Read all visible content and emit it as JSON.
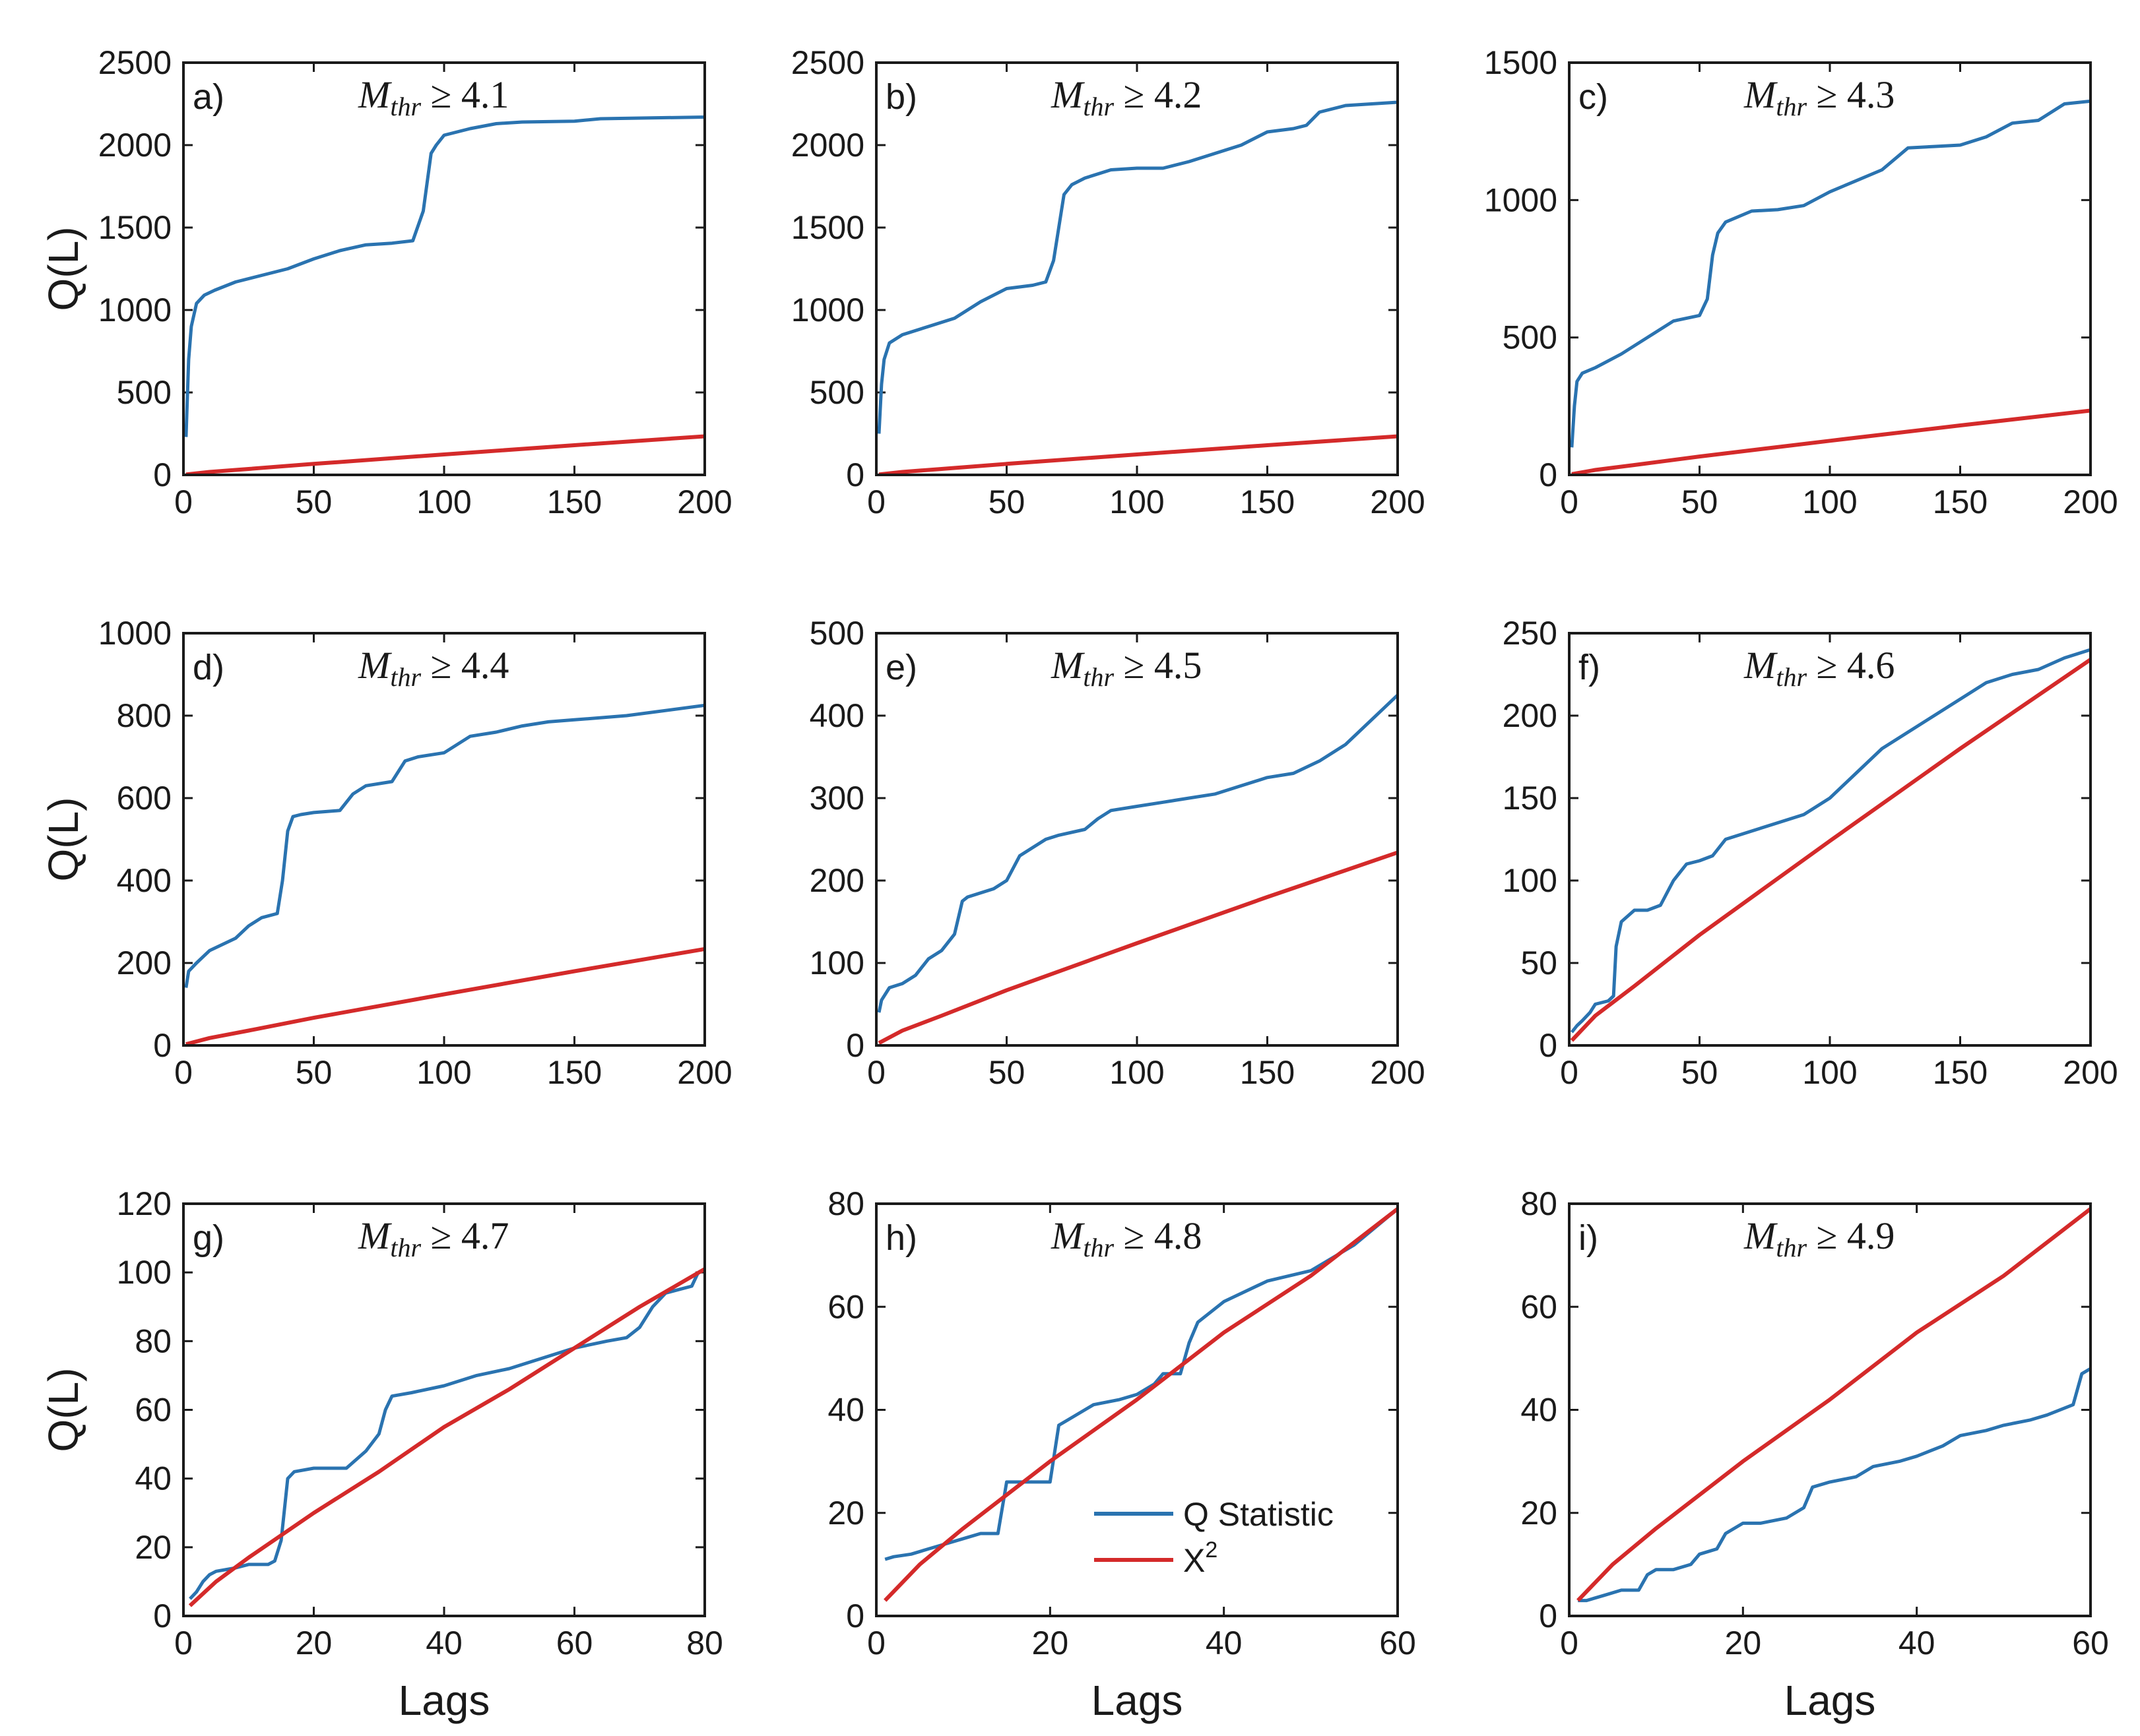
{
  "colors": {
    "q": "#2a73b0",
    "chi": "#d42a2a",
    "axis": "#1a1a1a"
  },
  "legend": {
    "q_label": "Q Statistic",
    "chi_base": "X",
    "chi_sup": "2",
    "panel": "h"
  },
  "chart_data": [
    {
      "type": "line",
      "panel": "a)",
      "mthr": "4.1",
      "prefix": "M",
      "sub": "thr",
      "rel": "≥",
      "xlim": [
        0,
        200
      ],
      "ylim": [
        0,
        2500
      ],
      "xticks": [
        0,
        50,
        100,
        150,
        200
      ],
      "yticks": [
        0,
        500,
        1000,
        1500,
        2000,
        2500
      ],
      "ylabel": "Q(L)",
      "xlabel": "",
      "series": [
        {
          "name": "Q Statistic",
          "x": [
            1,
            2,
            3,
            5,
            8,
            12,
            20,
            30,
            40,
            50,
            60,
            70,
            80,
            88,
            92,
            95,
            97,
            100,
            110,
            120,
            130,
            150,
            160,
            200
          ],
          "y": [
            230,
            700,
            900,
            1040,
            1090,
            1120,
            1170,
            1210,
            1250,
            1310,
            1360,
            1395,
            1405,
            1420,
            1600,
            1950,
            2000,
            2060,
            2100,
            2130,
            2140,
            2145,
            2160,
            2170
          ]
        },
        {
          "name": "X2",
          "x": [
            1,
            10,
            25,
            50,
            100,
            150,
            200
          ],
          "y": [
            3,
            18,
            36,
            67,
            124,
            180,
            234
          ]
        }
      ]
    },
    {
      "type": "line",
      "panel": "b)",
      "mthr": "4.2",
      "prefix": "M",
      "sub": "thr",
      "rel": "≥",
      "xlim": [
        0,
        200
      ],
      "ylim": [
        0,
        2500
      ],
      "xticks": [
        0,
        50,
        100,
        150,
        200
      ],
      "yticks": [
        0,
        500,
        1000,
        1500,
        2000,
        2500
      ],
      "ylabel": "",
      "xlabel": "",
      "series": [
        {
          "name": "Q Statistic",
          "x": [
            1,
            2,
            3,
            5,
            10,
            20,
            30,
            40,
            50,
            60,
            65,
            68,
            70,
            72,
            75,
            80,
            90,
            100,
            110,
            120,
            130,
            140,
            150,
            160,
            165,
            170,
            180,
            200
          ],
          "y": [
            250,
            550,
            700,
            800,
            850,
            900,
            950,
            1050,
            1130,
            1150,
            1170,
            1300,
            1500,
            1700,
            1760,
            1800,
            1850,
            1860,
            1860,
            1900,
            1950,
            2000,
            2080,
            2100,
            2120,
            2200,
            2240,
            2260
          ]
        },
        {
          "name": "X2",
          "x": [
            1,
            10,
            25,
            50,
            100,
            150,
            200
          ],
          "y": [
            3,
            18,
            36,
            67,
            124,
            180,
            234
          ]
        }
      ]
    },
    {
      "type": "line",
      "panel": "c)",
      "mthr": "4.3",
      "prefix": "M",
      "sub": "thr",
      "rel": "≥",
      "xlim": [
        0,
        200
      ],
      "ylim": [
        0,
        1500
      ],
      "xticks": [
        0,
        50,
        100,
        150,
        200
      ],
      "yticks": [
        0,
        500,
        1000,
        1500
      ],
      "ylabel": "",
      "xlabel": "",
      "series": [
        {
          "name": "Q Statistic",
          "x": [
            1,
            2,
            3,
            5,
            10,
            20,
            30,
            40,
            50,
            53,
            55,
            57,
            60,
            70,
            80,
            90,
            100,
            110,
            120,
            130,
            140,
            150,
            160,
            170,
            180,
            190,
            200
          ],
          "y": [
            100,
            250,
            340,
            370,
            390,
            440,
            500,
            560,
            580,
            640,
            800,
            880,
            920,
            960,
            965,
            980,
            1030,
            1070,
            1110,
            1190,
            1195,
            1200,
            1230,
            1280,
            1290,
            1350,
            1360
          ]
        },
        {
          "name": "X2",
          "x": [
            1,
            10,
            25,
            50,
            100,
            150,
            200
          ],
          "y": [
            3,
            18,
            36,
            67,
            124,
            180,
            234
          ]
        }
      ]
    },
    {
      "type": "line",
      "panel": "d)",
      "mthr": "4.4",
      "prefix": "M",
      "sub": "thr",
      "rel": "≥",
      "xlim": [
        0,
        200
      ],
      "ylim": [
        0,
        1000
      ],
      "xticks": [
        0,
        50,
        100,
        150,
        200
      ],
      "yticks": [
        0,
        200,
        400,
        600,
        800,
        1000
      ],
      "ylabel": "Q(L)",
      "xlabel": "",
      "series": [
        {
          "name": "Q Statistic",
          "x": [
            1,
            2,
            5,
            10,
            20,
            25,
            30,
            36,
            38,
            40,
            42,
            45,
            50,
            60,
            65,
            70,
            80,
            85,
            90,
            100,
            110,
            120,
            130,
            140,
            150,
            170,
            200
          ],
          "y": [
            140,
            180,
            200,
            230,
            260,
            290,
            310,
            320,
            400,
            520,
            555,
            560,
            565,
            570,
            610,
            630,
            640,
            690,
            700,
            710,
            750,
            760,
            775,
            785,
            790,
            800,
            825
          ]
        },
        {
          "name": "X2",
          "x": [
            1,
            10,
            25,
            50,
            100,
            150,
            200
          ],
          "y": [
            3,
            18,
            36,
            67,
            124,
            180,
            234
          ]
        }
      ]
    },
    {
      "type": "line",
      "panel": "e)",
      "mthr": "4.5",
      "prefix": "M",
      "sub": "thr",
      "rel": "≥",
      "xlim": [
        0,
        200
      ],
      "ylim": [
        0,
        500
      ],
      "xticks": [
        0,
        50,
        100,
        150,
        200
      ],
      "yticks": [
        0,
        100,
        200,
        300,
        400,
        500
      ],
      "ylabel": "",
      "xlabel": "",
      "series": [
        {
          "name": "Q Statistic",
          "x": [
            1,
            2,
            5,
            10,
            15,
            20,
            25,
            30,
            33,
            35,
            40,
            45,
            50,
            55,
            60,
            65,
            70,
            80,
            85,
            90,
            100,
            110,
            120,
            130,
            140,
            150,
            160,
            170,
            180,
            190,
            200
          ],
          "y": [
            40,
            55,
            70,
            75,
            85,
            105,
            115,
            135,
            175,
            180,
            185,
            190,
            200,
            230,
            240,
            250,
            255,
            262,
            275,
            285,
            290,
            295,
            300,
            305,
            315,
            325,
            330,
            345,
            365,
            395,
            425
          ]
        },
        {
          "name": "X2",
          "x": [
            1,
            10,
            25,
            50,
            100,
            150,
            200
          ],
          "y": [
            3,
            18,
            36,
            67,
            124,
            180,
            234
          ]
        }
      ]
    },
    {
      "type": "line",
      "panel": "f)",
      "mthr": "4.6",
      "prefix": "M",
      "sub": "thr",
      "rel": "≥",
      "xlim": [
        0,
        200
      ],
      "ylim": [
        0,
        250
      ],
      "xticks": [
        0,
        50,
        100,
        150,
        200
      ],
      "yticks": [
        0,
        50,
        100,
        150,
        200,
        250
      ],
      "ylabel": "",
      "xlabel": "",
      "series": [
        {
          "name": "Q Statistic",
          "x": [
            1,
            3,
            5,
            8,
            10,
            15,
            17,
            18,
            20,
            25,
            30,
            35,
            40,
            45,
            50,
            55,
            60,
            70,
            80,
            90,
            100,
            110,
            120,
            130,
            140,
            150,
            160,
            170,
            180,
            190,
            200
          ],
          "y": [
            8,
            12,
            15,
            20,
            25,
            27,
            30,
            60,
            75,
            82,
            82,
            85,
            100,
            110,
            112,
            115,
            125,
            130,
            135,
            140,
            150,
            165,
            180,
            190,
            200,
            210,
            220,
            225,
            228,
            235,
            240
          ]
        },
        {
          "name": "X2",
          "x": [
            1,
            10,
            25,
            50,
            100,
            150,
            200
          ],
          "y": [
            3,
            18,
            36,
            67,
            124,
            180,
            234
          ]
        }
      ]
    },
    {
      "type": "line",
      "panel": "g)",
      "mthr": "4.7",
      "prefix": "M",
      "sub": "thr",
      "rel": "≥",
      "xlim": [
        0,
        80
      ],
      "ylim": [
        0,
        120
      ],
      "xticks": [
        0,
        20,
        40,
        60,
        80
      ],
      "yticks": [
        0,
        20,
        40,
        60,
        80,
        100,
        120
      ],
      "ylabel": "Q(L)",
      "xlabel": "Lags",
      "series": [
        {
          "name": "Q Statistic",
          "x": [
            1,
            2,
            3,
            4,
            5,
            8,
            10,
            13,
            14,
            15,
            16,
            17,
            20,
            25,
            28,
            30,
            31,
            32,
            35,
            40,
            45,
            50,
            55,
            60,
            65,
            68,
            70,
            72,
            74,
            76,
            78,
            79,
            80
          ],
          "y": [
            5,
            7,
            10,
            12,
            13,
            14,
            15,
            15,
            16,
            22,
            40,
            42,
            43,
            43,
            48,
            53,
            60,
            64,
            65,
            67,
            70,
            72,
            75,
            78,
            80,
            81,
            84,
            90,
            94,
            95,
            96,
            100,
            101
          ]
        },
        {
          "name": "X2",
          "x": [
            1,
            5,
            10,
            20,
            30,
            40,
            50,
            60,
            70,
            80
          ],
          "y": [
            3,
            10,
            17,
            30,
            42,
            55,
            66,
            78,
            90,
            101
          ]
        }
      ]
    },
    {
      "type": "line",
      "panel": "h)",
      "mthr": "4.8",
      "prefix": "M",
      "sub": "thr",
      "rel": "≥",
      "xlim": [
        0,
        60
      ],
      "ylim": [
        0,
        80
      ],
      "xticks": [
        0,
        20,
        40,
        60
      ],
      "yticks": [
        0,
        20,
        40,
        60,
        80
      ],
      "ylabel": "",
      "xlabel": "Lags",
      "series": [
        {
          "name": "Q Statistic",
          "x": [
            1,
            2,
            4,
            6,
            8,
            10,
            12,
            14,
            15,
            17,
            19,
            20,
            21,
            22,
            25,
            28,
            30,
            32,
            33,
            35,
            36,
            37,
            40,
            45,
            50,
            55,
            60
          ],
          "y": [
            11,
            11.5,
            12,
            13,
            14,
            15,
            16,
            16,
            26,
            26,
            26,
            26,
            37,
            38,
            41,
            42,
            43,
            45,
            47,
            47,
            53,
            57,
            61,
            65,
            67,
            72,
            79
          ]
        },
        {
          "name": "X2",
          "x": [
            1,
            5,
            10,
            20,
            30,
            40,
            50,
            60
          ],
          "y": [
            3,
            10,
            17,
            30,
            42,
            55,
            66,
            79
          ]
        }
      ]
    },
    {
      "type": "line",
      "panel": "i)",
      "mthr": "4.9",
      "prefix": "M",
      "sub": "thr",
      "rel": "≥",
      "xlim": [
        0,
        60
      ],
      "ylim": [
        0,
        80
      ],
      "xticks": [
        0,
        20,
        40,
        60
      ],
      "yticks": [
        0,
        20,
        40,
        60,
        80
      ],
      "ylabel": "",
      "xlabel": "Lags",
      "series": [
        {
          "name": "Q Statistic",
          "x": [
            1,
            2,
            4,
            6,
            8,
            9,
            10,
            12,
            14,
            15,
            17,
            18,
            20,
            22,
            25,
            27,
            28,
            30,
            33,
            35,
            38,
            40,
            43,
            45,
            48,
            50,
            53,
            55,
            58,
            59,
            60
          ],
          "y": [
            3,
            3,
            4,
            5,
            5,
            8,
            9,
            9,
            10,
            12,
            13,
            16,
            18,
            18,
            19,
            21,
            25,
            26,
            27,
            29,
            30,
            31,
            33,
            35,
            36,
            37,
            38,
            39,
            41,
            47,
            48
          ]
        },
        {
          "name": "X2",
          "x": [
            1,
            5,
            10,
            20,
            30,
            40,
            50,
            60
          ],
          "y": [
            3,
            10,
            17,
            30,
            42,
            55,
            66,
            79
          ]
        }
      ]
    }
  ]
}
